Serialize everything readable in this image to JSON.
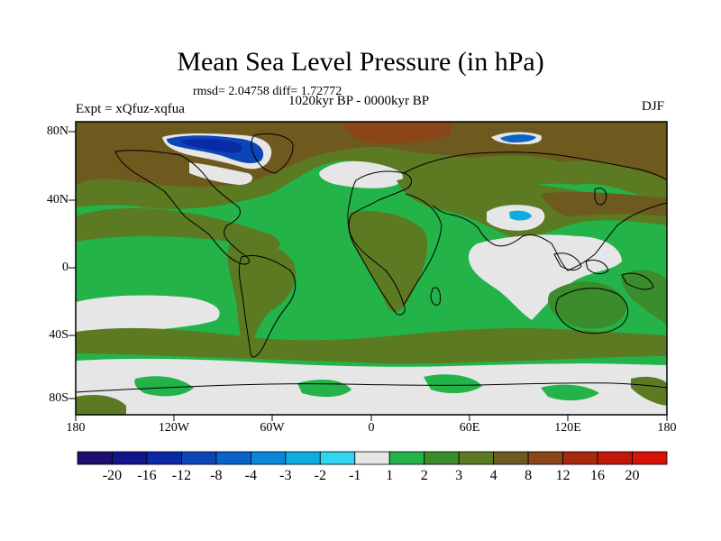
{
  "figure": {
    "title": "Mean Sea Level Pressure (in hPa)",
    "stats": "rmsd= 2.04758 diff= 1.72772",
    "period": "1020kyr BP - 0000kyr BP",
    "experiment": "Expt = xQfuz-xqfua",
    "season": "DJF"
  },
  "axes": {
    "lat_labels": [
      "80N",
      "40N",
      "0",
      "40S",
      "80S"
    ],
    "lon_labels": [
      "180",
      "120W",
      "60W",
      "0",
      "60E",
      "120E",
      "180"
    ]
  },
  "colorbar": {
    "labels": [
      "-20",
      "-16",
      "-12",
      "-8",
      "-4",
      "-3",
      "-2",
      "-1",
      "1",
      "2",
      "3",
      "4",
      "8",
      "12",
      "16",
      "20"
    ],
    "colors": [
      "#1d0f6b",
      "#10158a",
      "#0a2aa6",
      "#0b45b8",
      "#0b63c8",
      "#0a86d8",
      "#10abe0",
      "#2fd6ee",
      "#e6e6e6",
      "#23b349",
      "#3a8c2c",
      "#5b7a22",
      "#6e5a1f",
      "#8a4518",
      "#a82a0d",
      "#c2180a",
      "#d81208"
    ]
  }
}
